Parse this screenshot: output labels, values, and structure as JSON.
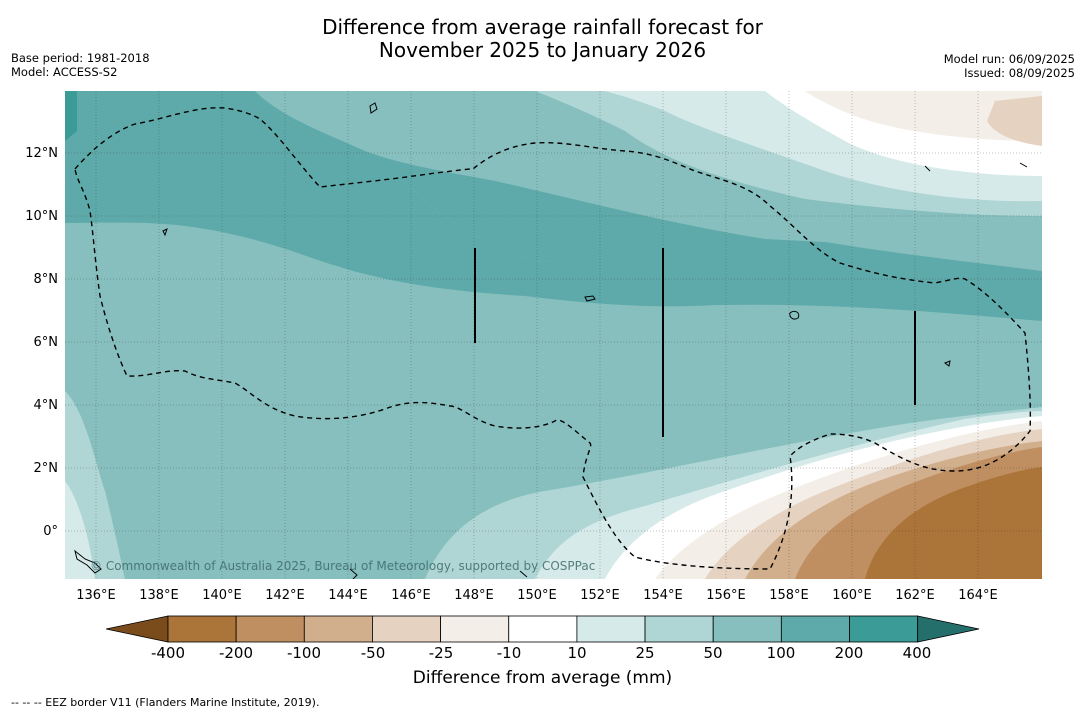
{
  "title": {
    "line1": "Difference from average rainfall forecast for",
    "line2": "November 2025 to January 2026"
  },
  "meta_left": {
    "base_period": "Base period: 1981-2018",
    "model": "Model: ACCESS-S2"
  },
  "meta_right": {
    "model_run": "Model run: 06/09/2025",
    "issued": "Issued: 08/09/2025"
  },
  "map": {
    "lon_labels": [
      "136°E",
      "138°E",
      "140°E",
      "142°E",
      "144°E",
      "146°E",
      "148°E",
      "150°E",
      "152°E",
      "154°E",
      "156°E",
      "158°E",
      "160°E",
      "162°E",
      "164°E"
    ],
    "lat_labels": [
      "12°N",
      "10°N",
      "8°N",
      "6°N",
      "4°N",
      "2°N",
      "0°"
    ],
    "copyright": "© Commonwealth of Australia 2025, Bureau of Meteorology, supported by COSPPac"
  },
  "colorbar": {
    "ticks": [
      "-400",
      "-200",
      "-100",
      "-50",
      "-25",
      "-10",
      "10",
      "25",
      "50",
      "100",
      "200",
      "400"
    ],
    "colors": [
      "#7a4c1c",
      "#ab7438",
      "#bf8f62",
      "#d1ae8c",
      "#e5d2c0",
      "#f3eee8",
      "#ffffff",
      "#d6eae9",
      "#afd6d5",
      "#86bfbe",
      "#5eaaaa",
      "#3a9b97",
      "#246f6c"
    ],
    "label": "Difference from average (mm)"
  },
  "footer": "--  --  -- EEZ border V11 (Flanders Marine Institute, 2019)."
}
